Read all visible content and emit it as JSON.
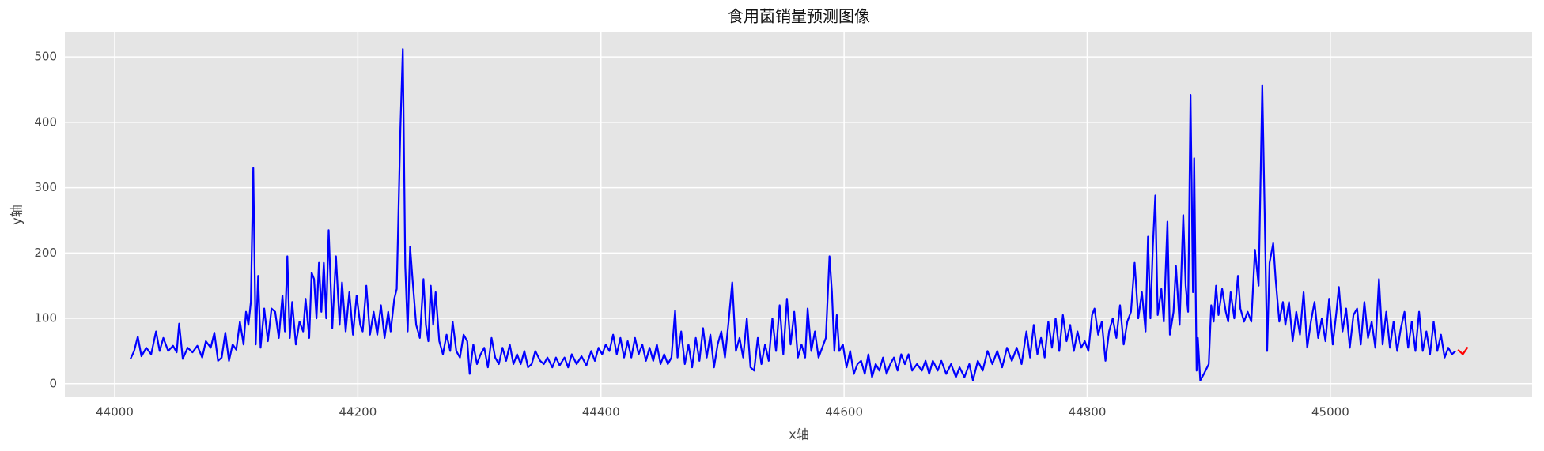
{
  "chart_data": {
    "type": "line",
    "title": "食用菌销量预测图像",
    "x_label": "x轴",
    "y_label": "y轴",
    "xlim": [
      43959,
      45166
    ],
    "ylim": [
      -19.6,
      537.6
    ],
    "xticks": [
      44000,
      44200,
      44400,
      44600,
      44800,
      45000
    ],
    "yticks": [
      0,
      100,
      200,
      300,
      400,
      500
    ],
    "grid": true,
    "series": [
      {
        "color": "#0000ff",
        "x": [
          44013,
          44016,
          44019,
          44022,
          44026,
          44030,
          44034,
          44037,
          44040,
          44044,
          44048,
          44051,
          44053,
          44056,
          44060,
          44064,
          44068,
          44072,
          44075,
          44079,
          44082,
          44085,
          44088,
          44091,
          44094,
          44097,
          44100,
          44103,
          44106,
          44108,
          44110,
          44112,
          44114,
          44116,
          44118,
          44120,
          44123,
          44126,
          44129,
          44132,
          44135,
          44138,
          44140,
          44142,
          44144,
          44146,
          44149,
          44152,
          44155,
          44157,
          44160,
          44162,
          44164,
          44166,
          44168,
          44170,
          44172,
          44174,
          44176,
          44179,
          44182,
          44185,
          44187,
          44190,
          44193,
          44196,
          44199,
          44202,
          44204,
          44207,
          44210,
          44213,
          44216,
          44219,
          44222,
          44225,
          44227,
          44230,
          44232,
          44235,
          44237,
          44239,
          44241,
          44243,
          44245,
          44248,
          44251,
          44254,
          44256,
          44258,
          44260,
          44262,
          44264,
          44267,
          44270,
          44273,
          44276,
          44278,
          44281,
          44284,
          44287,
          44290,
          44292,
          44295,
          44298,
          44301,
          44304,
          44307,
          44310,
          44313,
          44316,
          44319,
          44322,
          44325,
          44328,
          44331,
          44334,
          44337,
          44340,
          44343,
          44346,
          44350,
          44353,
          44356,
          44360,
          44363,
          44366,
          44370,
          44373,
          44376,
          44380,
          44384,
          44388,
          44392,
          44395,
          44398,
          44401,
          44404,
          44407,
          44410,
          44413,
          44416,
          44419,
          44422,
          44425,
          44428,
          44431,
          44434,
          44437,
          44440,
          44443,
          44446,
          44449,
          44452,
          44455,
          44458,
          44461,
          44463,
          44466,
          44469,
          44472,
          44475,
          44478,
          44481,
          44484,
          44487,
          44490,
          44493,
          44496,
          44499,
          44502,
          44505,
          44508,
          44511,
          44514,
          44517,
          44520,
          44523,
          44526,
          44529,
          44532,
          44535,
          44538,
          44541,
          44544,
          44547,
          44550,
          44553,
          44556,
          44559,
          44562,
          44565,
          44568,
          44570,
          44573,
          44576,
          44579,
          44582,
          44585,
          44588,
          44590,
          44592,
          44594,
          44596,
          44599,
          44602,
          44605,
          44608,
          44611,
          44614,
          44617,
          44620,
          44623,
          44626,
          44629,
          44632,
          44635,
          44638,
          44641,
          44644,
          44647,
          44650,
          44653,
          44656,
          44660,
          44664,
          44667,
          44670,
          44673,
          44677,
          44680,
          44684,
          44688,
          44692,
          44695,
          44699,
          44703,
          44706,
          44710,
          44714,
          44718,
          44722,
          44726,
          44730,
          44734,
          44738,
          44742,
          44746,
          44750,
          44753,
          44756,
          44759,
          44762,
          44765,
          44768,
          44771,
          44774,
          44777,
          44780,
          44783,
          44786,
          44789,
          44792,
          44795,
          44798,
          44801,
          44804,
          44806,
          44809,
          44812,
          44815,
          44818,
          44821,
          44824,
          44827,
          44830,
          44833,
          44836,
          44839,
          44842,
          44845,
          44848,
          44850,
          44852,
          44854,
          44856,
          44858,
          44861,
          44863,
          44866,
          44868,
          44871,
          44873,
          44876,
          44879,
          44881,
          44883,
          44885,
          44887,
          44888,
          44890,
          44891,
          44893,
          44896,
          44900,
          44902,
          44904,
          44906,
          44908,
          44911,
          44914,
          44916,
          44918,
          44921,
          44924,
          44926,
          44929,
          44932,
          44935,
          44938,
          44941,
          44944,
          44946,
          44948,
          44950,
          44953,
          44955,
          44958,
          44961,
          44963,
          44966,
          44969,
          44972,
          44975,
          44978,
          44981,
          44984,
          44987,
          44990,
          44993,
          44996,
          44999,
          45002,
          45005,
          45007,
          45010,
          45013,
          45016,
          45019,
          45022,
          45025,
          45028,
          45031,
          45034,
          45037,
          45040,
          45043,
          45046,
          45049,
          45052,
          45055,
          45058,
          45061,
          45064,
          45067,
          45070,
          45073,
          45076,
          45079,
          45082,
          45085,
          45088,
          45091,
          45094,
          45097,
          45100,
          45103
        ],
        "values": [
          38,
          50,
          72,
          42,
          55,
          45,
          80,
          50,
          70,
          50,
          58,
          48,
          92,
          38,
          55,
          48,
          58,
          40,
          65,
          55,
          78,
          35,
          40,
          78,
          35,
          60,
          52,
          95,
          60,
          110,
          90,
          125,
          330,
          60,
          165,
          55,
          115,
          65,
          115,
          110,
          70,
          135,
          80,
          195,
          70,
          125,
          60,
          95,
          80,
          130,
          70,
          170,
          160,
          100,
          185,
          110,
          185,
          100,
          235,
          85,
          195,
          90,
          155,
          80,
          140,
          75,
          135,
          90,
          80,
          150,
          75,
          110,
          75,
          120,
          70,
          110,
          80,
          130,
          145,
          390,
          512,
          180,
          80,
          210,
          160,
          90,
          70,
          160,
          90,
          65,
          150,
          90,
          140,
          65,
          45,
          75,
          50,
          95,
          50,
          40,
          75,
          65,
          15,
          60,
          30,
          45,
          55,
          25,
          70,
          40,
          30,
          55,
          35,
          60,
          30,
          45,
          30,
          50,
          25,
          30,
          50,
          35,
          30,
          40,
          25,
          40,
          28,
          40,
          25,
          45,
          30,
          42,
          28,
          50,
          35,
          55,
          45,
          60,
          50,
          75,
          45,
          70,
          40,
          65,
          40,
          70,
          45,
          60,
          35,
          55,
          35,
          60,
          30,
          45,
          30,
          40,
          112,
          40,
          80,
          30,
          60,
          25,
          70,
          35,
          85,
          40,
          75,
          25,
          60,
          80,
          40,
          95,
          155,
          50,
          70,
          40,
          100,
          25,
          20,
          70,
          30,
          60,
          35,
          100,
          50,
          120,
          45,
          130,
          60,
          110,
          40,
          60,
          40,
          115,
          50,
          80,
          40,
          55,
          70,
          195,
          140,
          50,
          105,
          50,
          60,
          25,
          50,
          15,
          30,
          35,
          15,
          45,
          10,
          30,
          20,
          40,
          15,
          30,
          40,
          20,
          45,
          30,
          45,
          20,
          30,
          20,
          35,
          15,
          35,
          20,
          35,
          15,
          30,
          10,
          25,
          10,
          30,
          5,
          35,
          20,
          50,
          30,
          50,
          25,
          55,
          35,
          55,
          30,
          80,
          40,
          90,
          45,
          70,
          40,
          95,
          55,
          100,
          50,
          105,
          65,
          90,
          50,
          80,
          55,
          65,
          50,
          105,
          115,
          75,
          95,
          35,
          80,
          100,
          70,
          120,
          60,
          95,
          110,
          185,
          100,
          140,
          80,
          225,
          100,
          210,
          288,
          105,
          145,
          95,
          248,
          75,
          110,
          180,
          90,
          258,
          150,
          110,
          442,
          140,
          345,
          20,
          70,
          5,
          15,
          30,
          120,
          95,
          150,
          105,
          145,
          110,
          95,
          140,
          100,
          165,
          115,
          95,
          110,
          95,
          205,
          150,
          457,
          260,
          50,
          185,
          215,
          160,
          95,
          125,
          90,
          125,
          65,
          110,
          75,
          140,
          55,
          95,
          125,
          70,
          100,
          65,
          130,
          60,
          110,
          148,
          80,
          115,
          55,
          105,
          115,
          60,
          125,
          70,
          95,
          55,
          160,
          60,
          110,
          55,
          95,
          50,
          85,
          110,
          55,
          95,
          50,
          110,
          50,
          80,
          45,
          95,
          50,
          75,
          40,
          55,
          45,
          50
        ]
      },
      {
        "color": "#ff0000",
        "x": [
          45105,
          45109,
          45113
        ],
        "values": [
          52,
          45,
          56
        ]
      }
    ]
  }
}
